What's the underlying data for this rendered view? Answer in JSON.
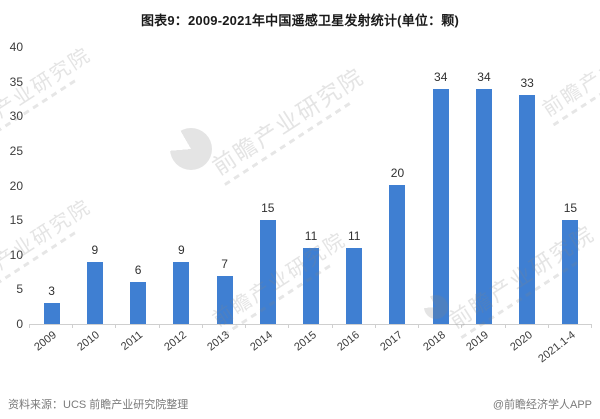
{
  "title": "图表9：2009-2021年中国遥感卫星发射统计(单位：颗)",
  "chart_data": {
    "type": "bar",
    "title": "图表9：2009-2021年中国遥感卫星发射统计(单位：颗)",
    "categories": [
      "2009",
      "2010",
      "2011",
      "2012",
      "2013",
      "2014",
      "2015",
      "2016",
      "2017",
      "2018",
      "2019",
      "2020",
      "2021.1-4"
    ],
    "values": [
      3,
      9,
      6,
      9,
      7,
      15,
      11,
      11,
      20,
      34,
      34,
      33,
      15
    ],
    "xlabel": "",
    "ylabel": "",
    "ylim": [
      0,
      40
    ],
    "yticks": [
      0,
      5,
      10,
      15,
      20,
      25,
      30,
      35,
      40
    ],
    "bar_color": "#3f7fd2",
    "label_color": "#303030",
    "grid": false,
    "legend_position": "none"
  },
  "watermark": {
    "text": "前瞻产业研究院"
  },
  "footer": {
    "source": "资料来源：UCS 前瞻产业研究院整理",
    "credit": "@前瞻经济学人APP"
  }
}
